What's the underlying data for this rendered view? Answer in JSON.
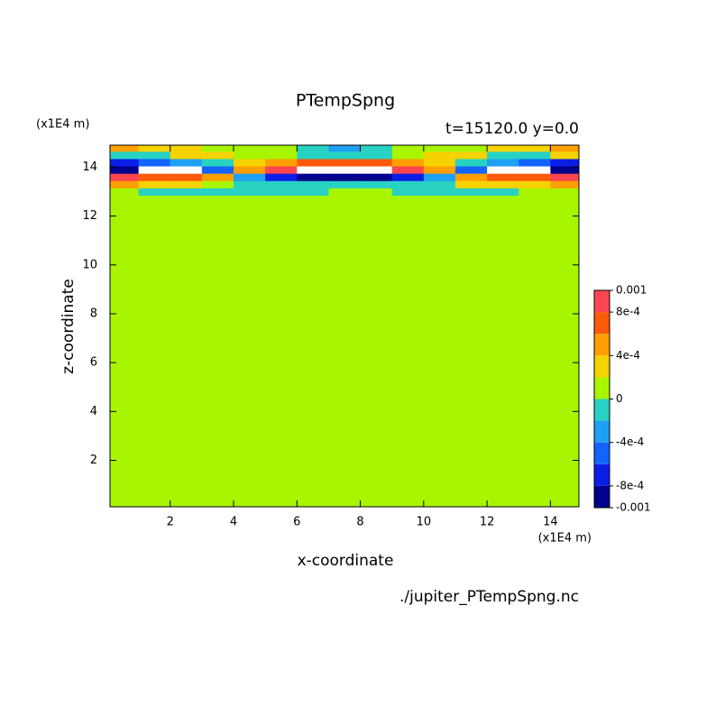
{
  "chart_data": {
    "type": "contour",
    "title": "PTempSpng",
    "subtitle": "t=15120.0 y=0.0",
    "y_unit": "(x1E4 m)",
    "x_unit": "(x1E4 m)",
    "xlabel": "x-coordinate",
    "ylabel": "z-coordinate",
    "source": "./jupiter_PTempSpng.nc",
    "x": [
      0.5,
      1.5,
      2.5,
      3.5,
      4.5,
      5.5,
      6.5,
      7.5,
      8.5,
      9.5,
      10.5,
      11.5,
      12.5,
      13.5,
      14.5
    ],
    "z": [
      13.0,
      13.3,
      13.6,
      13.9,
      14.2,
      14.5,
      14.8
    ],
    "values": [
      [
        0.0001,
        -0.0001,
        -0.0001,
        -0.0001,
        -0.0001,
        -0.0001,
        -0.0001,
        0.0001,
        0.0001,
        -0.0001,
        -0.0001,
        -0.0001,
        -0.0001,
        0.0001,
        0.0001
      ],
      [
        0.0005,
        0.0003,
        0.0003,
        0.0001,
        -0.0001,
        -0.0001,
        -0.0001,
        -0.0001,
        -0.0001,
        -0.0001,
        -0.0001,
        0.0003,
        0.0003,
        0.0003,
        0.0005
      ],
      [
        0.0009,
        0.0007,
        0.0007,
        0.0005,
        -0.0003,
        -0.0007,
        -0.0009,
        -0.0009,
        -0.0009,
        -0.0007,
        -0.0003,
        0.0005,
        0.0007,
        0.0007,
        0.0009
      ],
      [
        -0.0009,
        0.0012,
        0.0012,
        -0.0005,
        0.0005,
        0.0009,
        0.0012,
        0.0012,
        0.0012,
        0.0009,
        0.0005,
        -0.0005,
        0.0012,
        0.0012,
        -0.0009
      ],
      [
        -0.0007,
        -0.0005,
        -0.0003,
        -0.0001,
        0.0003,
        0.0005,
        0.0007,
        0.0007,
        0.0007,
        0.0005,
        0.0003,
        -0.0001,
        -0.0003,
        -0.0005,
        -0.0007
      ],
      [
        -0.0001,
        -0.0001,
        0.0003,
        0.0003,
        0.0001,
        0.0001,
        -0.0001,
        -0.0001,
        -0.0001,
        0.0001,
        0.0003,
        0.0003,
        -0.0001,
        -0.0001,
        0.0003
      ],
      [
        0.0005,
        0.0003,
        0.0003,
        0.0001,
        0.0001,
        0.0001,
        -0.0001,
        -0.0003,
        -0.0001,
        0.0001,
        0.0001,
        0.0001,
        0.0003,
        0.0003,
        0.0005
      ]
    ],
    "levels": [
      -0.001,
      -0.0008,
      -0.0006,
      -0.0004,
      -0.0002,
      0,
      0.0002,
      0.0004,
      0.0006,
      0.0008,
      0.001
    ],
    "colors": [
      "#00008c",
      "#0a1ee6",
      "#1464ff",
      "#1ea0f5",
      "#28d2c3",
      "#a8f500",
      "#f5d200",
      "#ffa000",
      "#ff5a0a",
      "#ff4650"
    ],
    "over_color": "#ffffff",
    "xlim": [
      0.1,
      14.9
    ],
    "ylim": [
      0.1,
      14.9
    ],
    "xticks": [
      2,
      4,
      6,
      8,
      10,
      12,
      14
    ],
    "yticks": [
      2,
      4,
      6,
      8,
      10,
      12,
      14
    ],
    "colorbar_ticks": [
      0.001,
      {
        "value": 0.0008,
        "label": "8e-4"
      },
      {
        "value": 0.0004,
        "label": "4e-4"
      },
      0,
      {
        "value": -0.0004,
        "label": "-4e-4"
      },
      {
        "value": -0.0008,
        "label": "-8e-4"
      },
      -0.001
    ]
  }
}
